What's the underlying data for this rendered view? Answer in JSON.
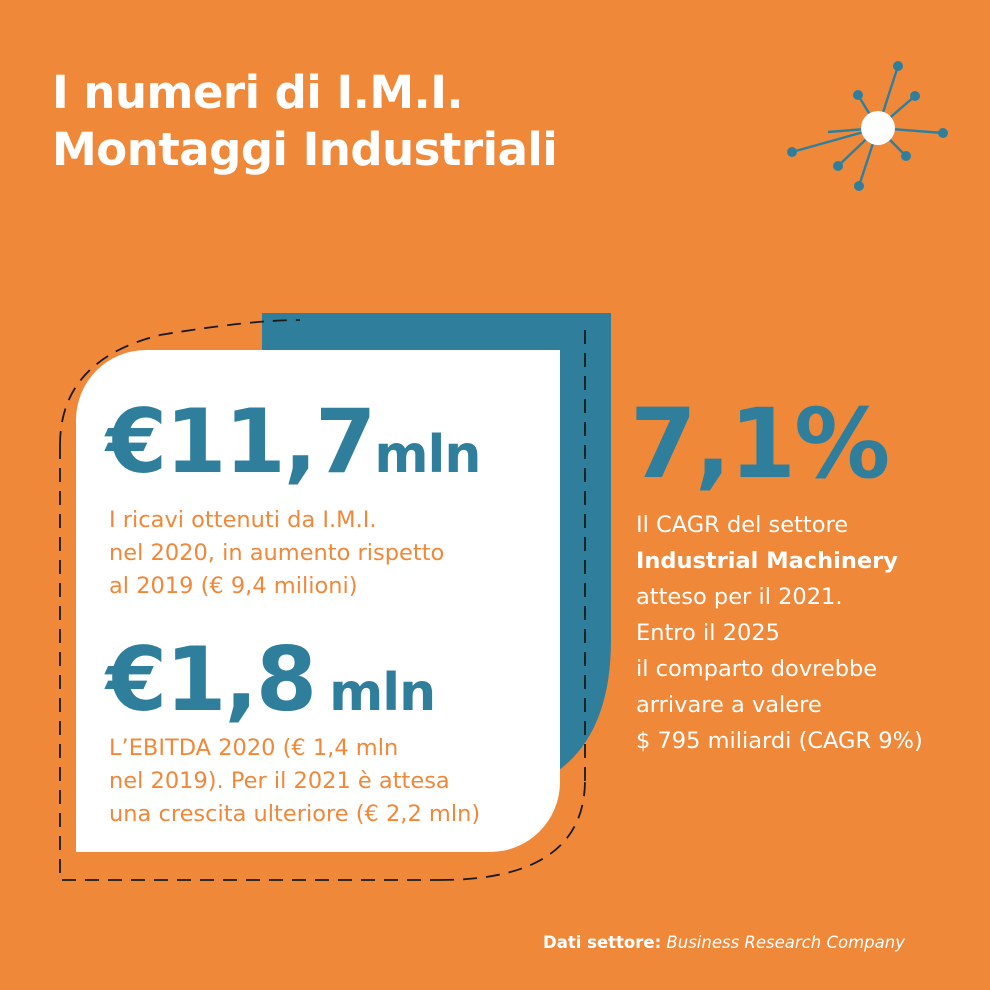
{
  "header": {
    "title_line1": "I numeri di I.M.I.",
    "title_line2": "Montaggi Industriali"
  },
  "stats": {
    "revenue": {
      "value": "€11,7",
      "unit": "mln",
      "description_lines": [
        "I ricavi ottenuti da I.M.I.",
        "nel 2020, in aumento rispetto",
        "al 2019 (€ 9,4 milioni)"
      ]
    },
    "ebitda": {
      "value": "€1,8",
      "unit": "mln",
      "description_lines": [
        "L’EBITDA 2020 (€ 1,4 mln",
        "nel 2019). Per il 2021 è attesa",
        "una crescita ulteriore (€ 2,2 mln)"
      ]
    }
  },
  "sector": {
    "cagr_value": "7,1%",
    "text_line1": "Il CAGR del settore",
    "text_line2_bold": "Industrial Machinery",
    "text_lines": [
      "atteso per il 2021.",
      "Entro il 2025",
      "il comparto dovrebbe",
      "arrivare a valere",
      "$ 795 miliardi (CAGR 9%)"
    ]
  },
  "footer": {
    "source_label": "Dati settore:",
    "source_name": "Business Research Company"
  },
  "colors": {
    "background": "#F0883A",
    "accent_blue": "#2F7F9C",
    "white": "#FFFFFF"
  },
  "icons": [
    "network-burst-icon"
  ]
}
